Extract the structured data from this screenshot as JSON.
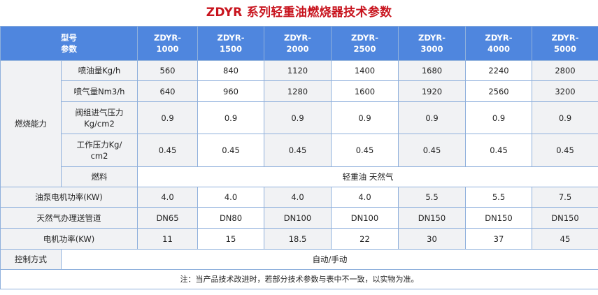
{
  "title": "ZDYR 系列轻重油燃烧器技术参数",
  "header": {
    "model_label": "型号",
    "param_label": "参数",
    "models": [
      [
        "ZDYR-",
        "1000"
      ],
      [
        "ZDYR-",
        "1500"
      ],
      [
        "ZDYR-",
        "2000"
      ],
      [
        "ZDYR-",
        "2500"
      ],
      [
        "ZDYR-",
        "3000"
      ],
      [
        "ZDYR-",
        "4000"
      ],
      [
        "ZDYR-",
        "5000"
      ]
    ]
  },
  "group_label": "燃烧能力",
  "group_rows": [
    {
      "label": [
        "喷油量Kg/h"
      ],
      "values": [
        "560",
        "840",
        "1120",
        "1400",
        "1680",
        "2240",
        "2800"
      ]
    },
    {
      "label": [
        "喷气量Nm3/h"
      ],
      "values": [
        "640",
        "960",
        "1280",
        "1600",
        "1920",
        "2560",
        "3200"
      ]
    },
    {
      "label": [
        "阀组进气压力",
        "Kg/cm2"
      ],
      "values": [
        "0.9",
        "0.9",
        "0.9",
        "0.9",
        "0.9",
        "0.9",
        "0.9"
      ]
    },
    {
      "label": [
        "工作压力Kg/",
        "cm2"
      ],
      "values": [
        "0.45",
        "0.45",
        "0.45",
        "0.45",
        "0.45",
        "0.45",
        "0.45"
      ]
    }
  ],
  "fuel": {
    "label": "燃料",
    "value": "轻重油 天然气"
  },
  "rows": [
    {
      "label": "油泵电机功率(KW)",
      "values": [
        "4.0",
        "4.0",
        "4.0",
        "4.0",
        "5.5",
        "5.5",
        "7.5"
      ]
    },
    {
      "label": "天然气办理送管道",
      "values": [
        "DN65",
        "DN80",
        "DN100",
        "DN100",
        "DN150",
        "DN150",
        "DN150"
      ]
    },
    {
      "label": "电机功率(KW)",
      "values": [
        "11",
        "15",
        "18.5",
        "22",
        "30",
        "37",
        "45"
      ]
    }
  ],
  "control": {
    "label": "控制方式",
    "value": "自动/手动"
  },
  "note": "注：当产品技术改进时，若部分技术参数与表中不一致，以实物为准。"
}
